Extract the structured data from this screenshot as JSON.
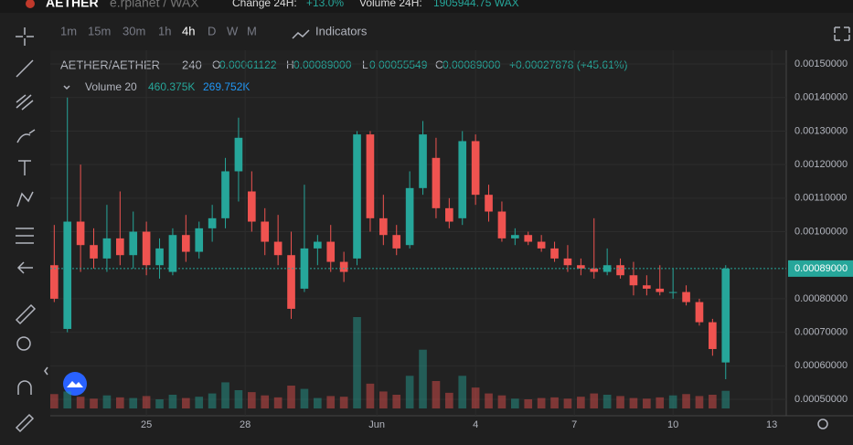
{
  "top_bar": {
    "symbol": "AETHER",
    "market": "e.rplanet / WAX",
    "change_label": "Change 24H:",
    "change_value": "+13.0%",
    "volume_label": "Volume 24H:",
    "volume_value": "1905944.75 WAX"
  },
  "toolbar": {
    "intervals": [
      "1m",
      "15m",
      "30m",
      "1h",
      "4h",
      "D",
      "W",
      "M"
    ],
    "active_interval": 4,
    "indicators": "Indicators"
  },
  "legend": {
    "pair": "AETHER/AETHER",
    "resolution": "240",
    "ohlc": [
      {
        "key": "O",
        "value": "0.00061122"
      },
      {
        "key": "H",
        "value": "0.00089000"
      },
      {
        "key": "L",
        "value": "0.00055549"
      },
      {
        "key": "C",
        "value": "0.00089000"
      }
    ],
    "change": "+0.00027878 (+45.61%)",
    "volume_name": "Volume 20",
    "volume_value": "460.375K",
    "volume_ma": "269.752K"
  },
  "chart_data": {
    "type": "candlestick",
    "x": [
      22.2,
      22.6,
      23,
      23.4,
      23.8,
      24.2,
      24.6,
      25,
      25.4,
      25.8,
      26.2,
      26.6,
      27,
      27.4,
      27.8,
      28.2,
      28.6,
      29,
      29.4,
      29.8,
      30.2,
      30.6,
      31,
      31.4,
      31.8,
      32.2,
      32.6,
      33,
      33.4,
      33.8,
      34.2,
      34.6,
      35,
      35.4,
      35.8,
      36.2,
      36.6,
      37,
      37.4,
      37.8,
      38.2,
      38.6,
      39,
      39.4,
      39.8,
      40.2,
      40.6,
      41,
      41.4,
      41.8,
      42.2,
      42.6
    ],
    "open": [
      0.0009,
      0.00071,
      0.00103,
      0.00096,
      0.00092,
      0.00098,
      0.00093,
      0.001,
      0.0009,
      0.00088,
      0.00099,
      0.00094,
      0.00101,
      0.00104,
      0.00118,
      0.00112,
      0.00103,
      0.00097,
      0.00093,
      0.00083,
      0.00095,
      0.00097,
      0.00091,
      0.00092,
      0.00129,
      0.00104,
      0.00099,
      0.00096,
      0.00113,
      0.00122,
      0.00107,
      0.00104,
      0.00127,
      0.00111,
      0.00106,
      0.00098,
      0.00099,
      0.00097,
      0.00095,
      0.00092,
      0.0009,
      0.00089,
      0.00088,
      0.0009,
      0.00087,
      0.00084,
      0.00083,
      0.00082,
      0.00082,
      0.00079,
      0.00073,
      0.00061
    ],
    "high": [
      0.00102,
      0.0014,
      0.0012,
      0.00101,
      0.00108,
      0.00112,
      0.00106,
      0.00103,
      0.00098,
      0.00101,
      0.00105,
      0.00103,
      0.00108,
      0.00122,
      0.00134,
      0.00118,
      0.00107,
      0.00105,
      0.001,
      0.00114,
      0.00099,
      0.00102,
      0.00094,
      0.0013,
      0.0013,
      0.00111,
      0.00102,
      0.00118,
      0.00133,
      0.00128,
      0.0011,
      0.0013,
      0.00129,
      0.00114,
      0.00109,
      0.00101,
      0.001,
      0.00099,
      0.00097,
      0.00096,
      0.00092,
      0.00104,
      0.00095,
      0.00092,
      0.00091,
      0.00087,
      0.0009,
      0.00089,
      0.00084,
      0.0008,
      0.00074,
      0.0009
    ],
    "low": [
      0.00079,
      0.0007,
      0.00088,
      0.00089,
      0.00088,
      0.0009,
      0.00089,
      0.00087,
      0.00086,
      0.00087,
      0.00091,
      0.00092,
      0.00097,
      0.00101,
      0.00109,
      0.001,
      0.00093,
      0.0009,
      0.00074,
      0.00082,
      0.0009,
      0.00088,
      0.00085,
      0.0009,
      0.001,
      0.00096,
      0.00093,
      0.00095,
      0.00111,
      0.00104,
      0.00101,
      0.00102,
      0.00108,
      0.00103,
      0.00097,
      0.00096,
      0.00096,
      0.00094,
      0.00091,
      0.00088,
      0.00087,
      0.00086,
      0.00087,
      0.00086,
      0.00081,
      0.00081,
      0.00081,
      0.0008,
      0.00078,
      0.00072,
      0.00063,
      0.00056
    ],
    "close": [
      0.0008,
      0.00103,
      0.00096,
      0.00092,
      0.00098,
      0.00093,
      0.001,
      0.0009,
      0.00095,
      0.00099,
      0.00094,
      0.00101,
      0.00104,
      0.00118,
      0.00128,
      0.00103,
      0.00097,
      0.00093,
      0.00077,
      0.00095,
      0.00097,
      0.00091,
      0.00088,
      0.00129,
      0.00104,
      0.00099,
      0.00095,
      0.00113,
      0.00129,
      0.00107,
      0.00103,
      0.00127,
      0.00111,
      0.00106,
      0.00098,
      0.00099,
      0.00097,
      0.00095,
      0.00092,
      0.0009,
      0.00089,
      0.00088,
      0.0009,
      0.00087,
      0.00084,
      0.00083,
      0.00082,
      0.00082,
      0.00079,
      0.00073,
      0.00065,
      0.00089
    ],
    "volume": [
      220,
      260,
      180,
      150,
      200,
      170,
      160,
      190,
      140,
      210,
      160,
      180,
      230,
      400,
      280,
      250,
      200,
      170,
      350,
      300,
      160,
      190,
      180,
      1400,
      380,
      260,
      210,
      500,
      900,
      420,
      240,
      500,
      320,
      230,
      200,
      150,
      140,
      160,
      170,
      150,
      180,
      230,
      210,
      190,
      160,
      150,
      170,
      200,
      220,
      190,
      210,
      270
    ],
    "up_color": "#26a69a",
    "down_color": "#ef5350",
    "xlim": [
      22.08,
      44.44
    ],
    "xticks": [
      25,
      28,
      {
        "value": 32,
        "label": "Jun"
      },
      {
        "value": 35,
        "label": "4"
      },
      {
        "value": 38,
        "label": "7"
      },
      {
        "value": 41,
        "label": "10"
      },
      {
        "value": 44,
        "label": "13"
      }
    ],
    "ylim": [
      0.000451,
      0.001541
    ],
    "yticks": [
      {
        "value": 0.0015,
        "label": "0.00150000"
      },
      {
        "value": 0.0014,
        "label": "0.00140000"
      },
      {
        "value": 0.0013,
        "label": "0.00130000"
      },
      {
        "value": 0.0012,
        "label": "0.00120000"
      },
      {
        "value": 0.0011,
        "label": "0.00110000"
      },
      {
        "value": 0.001,
        "label": "0.00100000"
      },
      {
        "value": 0.0008,
        "label": "0.00080000"
      },
      {
        "value": 0.0007,
        "label": "0.00070000"
      },
      {
        "value": 0.0006,
        "label": "0.00060000"
      },
      {
        "value": 0.0005,
        "label": "0.00050000"
      }
    ],
    "last_price": {
      "value": 0.00089,
      "label": "0.00089000"
    },
    "grid": true
  }
}
